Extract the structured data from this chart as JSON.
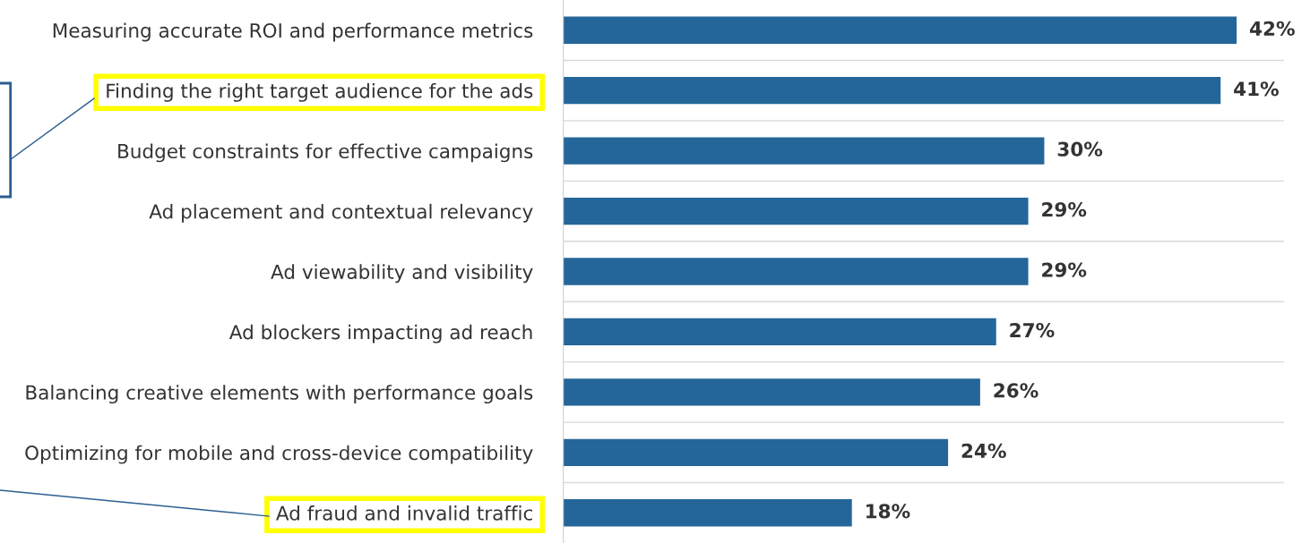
{
  "chart_data": {
    "type": "bar",
    "orientation": "horizontal",
    "categories": [
      "Measuring accurate ROI and performance metrics",
      "Finding the right target audience for the ads",
      "Budget constraints for effective campaigns",
      "Ad placement and contextual relevancy",
      "Ad viewability and visibility",
      "Ad blockers impacting ad reach",
      "Balancing creative elements with performance goals",
      "Optimizing for mobile and cross-device compatibility",
      "Ad fraud and invalid traffic"
    ],
    "values": [
      42,
      41,
      30,
      29,
      29,
      27,
      26,
      24,
      18
    ],
    "value_labels": [
      "42%",
      "41%",
      "30%",
      "29%",
      "29%",
      "27%",
      "26%",
      "24%",
      "18%"
    ],
    "color": "#246699",
    "grid": "y",
    "tick_labels": "y"
  }
}
